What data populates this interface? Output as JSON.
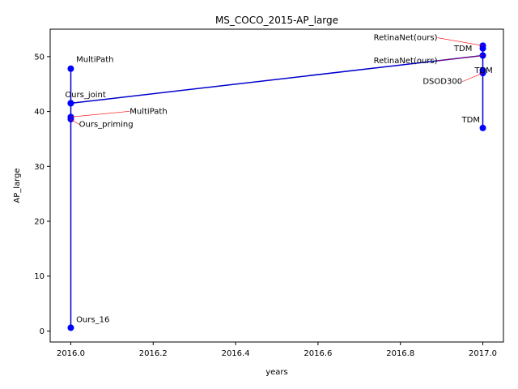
{
  "chart_data": {
    "type": "line",
    "title": "MS_COCO_2015-AP_large",
    "xlabel": "years",
    "ylabel": "AP_large",
    "xlim": [
      2015.95,
      2017.05
    ],
    "ylim": [
      -2,
      55
    ],
    "x_ticks": [
      2016.0,
      2016.2,
      2016.4,
      2016.6,
      2016.8,
      2017.0
    ],
    "x_tick_labels": [
      "2016.0",
      "2016.2",
      "2016.4",
      "2016.6",
      "2016.8",
      "2017.0"
    ],
    "y_ticks": [
      0,
      10,
      20,
      30,
      40,
      50
    ],
    "y_tick_labels": [
      "0",
      "10",
      "20",
      "30",
      "40",
      "50"
    ],
    "grid": false,
    "line_color": "#0000cc",
    "marker_color": "#0000ff",
    "annotation_arrow_color": "#ff0000",
    "points": [
      {
        "x": 2016.0,
        "y": 0.6
      },
      {
        "x": 2016.0,
        "y": 38.6
      },
      {
        "x": 2016.0,
        "y": 39.0
      },
      {
        "x": 2016.0,
        "y": 41.5
      },
      {
        "x": 2016.0,
        "y": 47.8
      },
      {
        "x": 2016.0,
        "y": 41.5
      },
      {
        "x": 2017.0,
        "y": 50.2
      },
      {
        "x": 2017.0,
        "y": 52.0
      },
      {
        "x": 2017.0,
        "y": 51.5
      },
      {
        "x": 2017.0,
        "y": 47.5
      },
      {
        "x": 2017.0,
        "y": 47.0
      },
      {
        "x": 2017.0,
        "y": 37.0
      }
    ],
    "annotations": [
      {
        "label": "MultiPath",
        "x": 2016.0,
        "y": 47.8,
        "text_x": 2016.013,
        "text_y": 49.0,
        "arrow": false,
        "anchor": "start"
      },
      {
        "label": "Ours_joint",
        "x": 2016.0,
        "y": 41.5,
        "text_x": 2015.986,
        "text_y": 42.6,
        "arrow": false,
        "anchor": "start"
      },
      {
        "label": "MultiPath",
        "x": 2016.0,
        "y": 39.0,
        "text_x": 2016.143,
        "text_y": 39.6,
        "arrow": true,
        "anchor": "start"
      },
      {
        "label": "Ours_priming",
        "x": 2016.0,
        "y": 38.6,
        "text_x": 2016.02,
        "text_y": 37.2,
        "arrow": true,
        "anchor": "start"
      },
      {
        "label": "Ours_16",
        "x": 2016.0,
        "y": 0.6,
        "text_x": 2016.013,
        "text_y": 1.6,
        "arrow": false,
        "anchor": "start"
      },
      {
        "label": "RetinaNet(ours)",
        "x": 2017.0,
        "y": 52.0,
        "text_x": 2016.89,
        "text_y": 53.0,
        "arrow": true,
        "anchor": "end"
      },
      {
        "label": "TDM",
        "x": 2017.0,
        "y": 51.5,
        "text_x": 2016.93,
        "text_y": 51.0,
        "arrow": false,
        "anchor": "start"
      },
      {
        "label": "RetinaNet(ours)",
        "x": 2017.0,
        "y": 50.2,
        "text_x": 2016.89,
        "text_y": 48.8,
        "arrow": true,
        "anchor": "end"
      },
      {
        "label": "TDM",
        "x": 2017.0,
        "y": 47.5,
        "text_x": 2016.98,
        "text_y": 47.0,
        "arrow": false,
        "anchor": "start"
      },
      {
        "label": "DSOD300",
        "x": 2017.0,
        "y": 47.0,
        "text_x": 2016.95,
        "text_y": 45.0,
        "arrow": true,
        "anchor": "end"
      },
      {
        "label": "TDM",
        "x": 2017.0,
        "y": 37.0,
        "text_x": 2016.993,
        "text_y": 38.0,
        "arrow": false,
        "anchor": "end"
      }
    ]
  }
}
